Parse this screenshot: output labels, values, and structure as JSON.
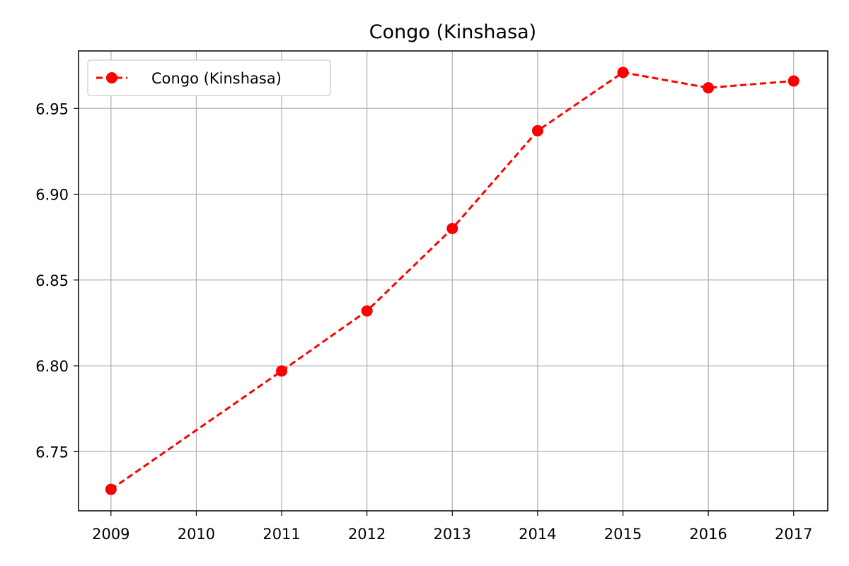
{
  "chart_data": {
    "type": "line",
    "title": "Congo (Kinshasa)",
    "xlabel": "",
    "ylabel": "",
    "x_ticks": [
      "2009",
      "2010",
      "2011",
      "2012",
      "2013",
      "2014",
      "2015",
      "2016",
      "2017"
    ],
    "y_ticks": [
      "6.75",
      "6.80",
      "6.85",
      "6.90",
      "6.95"
    ],
    "xlim": [
      2008.62,
      2017.4
    ],
    "ylim": [
      6.7155,
      6.9835
    ],
    "grid": true,
    "legend_position": "upper-left",
    "series": [
      {
        "name": "Congo (Kinshasa)",
        "color": "#ff0000",
        "line_style": "dashed",
        "marker": "circle",
        "x": [
          2009,
          2011,
          2012,
          2013,
          2014,
          2015,
          2016,
          2017
        ],
        "y": [
          6.728,
          6.797,
          6.832,
          6.88,
          6.937,
          6.971,
          6.962,
          6.966
        ]
      }
    ]
  }
}
